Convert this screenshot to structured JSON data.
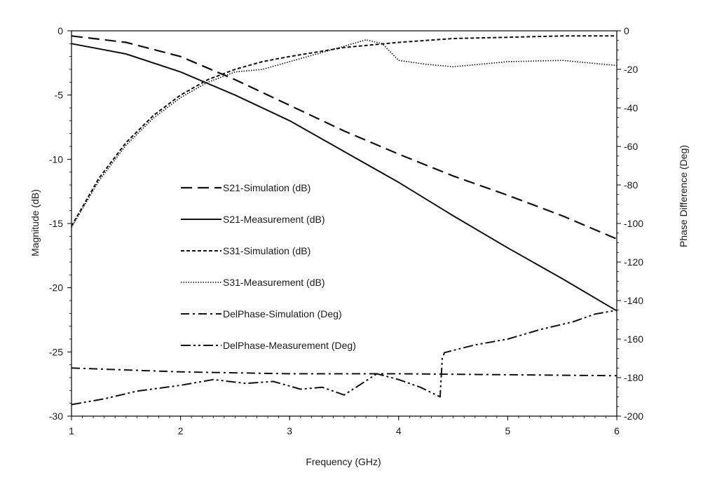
{
  "chart_data": {
    "type": "line",
    "xlabel": "Frequency (GHz)",
    "ylabel_left": "Magnitude (dB)",
    "ylabel_right": "Phase Difference (Deg)",
    "xlim": [
      1,
      6
    ],
    "ylim_left": [
      -30,
      0
    ],
    "ylim_right": [
      -200,
      0
    ],
    "x_ticks": [
      1,
      2,
      3,
      4,
      5,
      6
    ],
    "y_left_ticks": [
      0,
      -5,
      -10,
      -15,
      -20,
      -25,
      -30
    ],
    "y_right_ticks": [
      0,
      -20,
      -40,
      -60,
      -80,
      -100,
      -120,
      -140,
      -160,
      -180,
      -200
    ],
    "grid": false,
    "legend_position": "center-left",
    "series": [
      {
        "name": "S21-Simulation (dB)",
        "axis": "left",
        "style": "long-dash",
        "x": [
          1,
          1.5,
          2,
          2.5,
          3,
          3.5,
          4,
          4.5,
          5,
          5.5,
          6
        ],
        "y": [
          -0.4,
          -0.9,
          -2.0,
          -3.8,
          -5.8,
          -7.8,
          -9.6,
          -11.3,
          -12.8,
          -14.4,
          -16.2
        ]
      },
      {
        "name": "S21-Measurement (dB)",
        "axis": "left",
        "style": "solid",
        "x": [
          1,
          1.5,
          2,
          2.5,
          3,
          3.5,
          4,
          4.5,
          5,
          5.5,
          6
        ],
        "y": [
          -1.0,
          -1.8,
          -3.2,
          -5.0,
          -7.0,
          -9.4,
          -11.8,
          -14.4,
          -16.9,
          -19.3,
          -21.8
        ]
      },
      {
        "name": "S31-Simulation (dB)",
        "axis": "left",
        "style": "short-dash",
        "x": [
          1,
          1.25,
          1.5,
          1.75,
          2,
          2.25,
          2.5,
          2.75,
          3,
          3.5,
          4,
          4.5,
          5,
          5.5,
          6
        ],
        "y": [
          -15.2,
          -11.5,
          -8.7,
          -6.6,
          -5.0,
          -3.8,
          -3.0,
          -2.4,
          -2.0,
          -1.3,
          -0.9,
          -0.6,
          -0.5,
          -0.4,
          -0.4
        ]
      },
      {
        "name": "S31-Measurement (dB)",
        "axis": "left",
        "style": "dotted",
        "x": [
          1,
          1.25,
          1.5,
          1.75,
          2,
          2.25,
          2.5,
          2.75,
          3,
          3.25,
          3.5,
          3.7,
          3.85,
          4,
          4.25,
          4.5,
          5,
          5.5,
          6
        ],
        "y": [
          -15.3,
          -11.7,
          -8.9,
          -6.8,
          -5.2,
          -4.0,
          -3.2,
          -3.0,
          -2.4,
          -1.8,
          -1.2,
          -0.7,
          -1.0,
          -2.3,
          -2.6,
          -2.8,
          -2.4,
          -2.3,
          -2.7
        ]
      },
      {
        "name": "DelPhase-Simulation (Deg)",
        "axis": "right",
        "style": "dash-dot",
        "x": [
          1,
          2,
          3,
          4,
          5,
          6
        ],
        "y": [
          -175,
          -177,
          -178,
          -178,
          -178.5,
          -179
        ]
      },
      {
        "name": "DelPhase-Measurement (Deg)",
        "axis": "right",
        "style": "dash-dot-dot",
        "x": [
          1,
          1.3,
          1.6,
          2,
          2.3,
          2.6,
          2.85,
          3.1,
          3.3,
          3.5,
          3.8,
          4.0,
          4.2,
          4.38,
          4.4,
          4.42,
          4.7,
          5.0,
          5.3,
          5.6,
          5.8,
          6
        ],
        "y": [
          -194,
          -191,
          -187,
          -184,
          -181,
          -183,
          -182,
          -186,
          -185,
          -189,
          -178,
          -181,
          -185,
          -190,
          -170,
          -167,
          -163,
          -160,
          -155,
          -151,
          -147,
          -145
        ]
      }
    ]
  }
}
